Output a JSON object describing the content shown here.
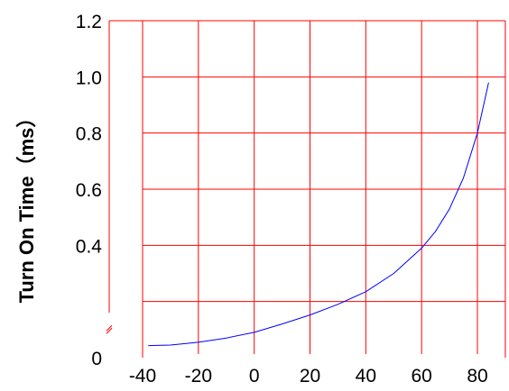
{
  "chart_data": {
    "type": "line",
    "title": "",
    "xlabel": "",
    "ylabel": "Turn On Time（ms）",
    "xlim": [
      -40,
      90
    ],
    "ylim": [
      0,
      1.2
    ],
    "x_ticks": [
      -40,
      -20,
      0,
      20,
      40,
      60,
      80
    ],
    "x_tick_labels": [
      "-40",
      "-20",
      "0",
      "20",
      "40",
      "60",
      "80"
    ],
    "y_ticks": [
      0,
      0.4,
      0.6,
      0.8,
      1.0,
      1.2
    ],
    "y_tick_labels": [
      "0",
      "0.4",
      "0.6",
      "0.8",
      "1.0",
      "1.2"
    ],
    "grid_x": [
      -40,
      -20,
      0,
      20,
      40,
      60,
      80
    ],
    "grid_y": [
      0.2,
      0.4,
      0.6,
      0.8,
      1.0,
      1.2
    ],
    "y_axis_break": true,
    "grid": true,
    "grid_color": "#ff0000",
    "line_color": "#0000ff",
    "series": [
      {
        "x": [
          -38,
          -30,
          -20,
          -10,
          0,
          10,
          20,
          30,
          40,
          50,
          60,
          65,
          70,
          75,
          80,
          84
        ],
        "values": [
          0.043,
          0.045,
          0.055,
          0.07,
          0.09,
          0.12,
          0.152,
          0.19,
          0.235,
          0.3,
          0.39,
          0.45,
          0.53,
          0.64,
          0.8,
          0.98
        ]
      }
    ]
  }
}
